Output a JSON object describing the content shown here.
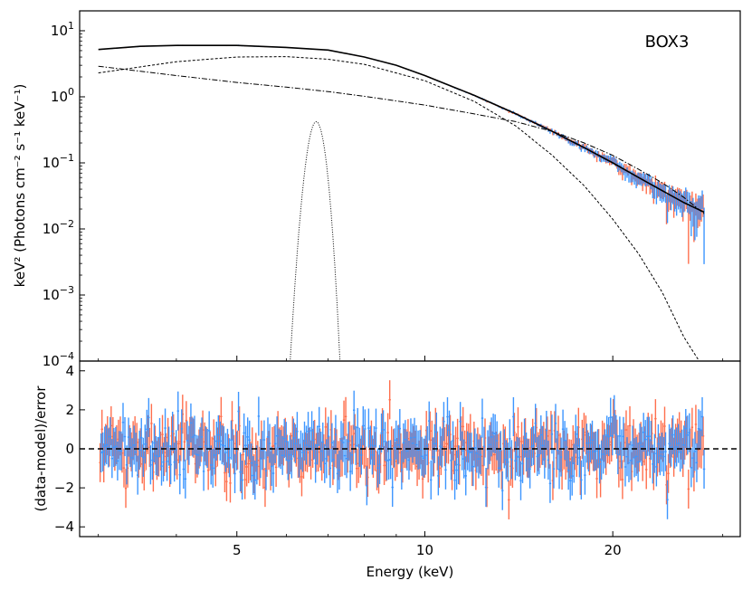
{
  "chart_data": [
    {
      "type": "line",
      "panel": "top",
      "annotation": "BOX3",
      "ylabel": "keV² (Photons cm⁻² s⁻¹ keV⁻¹)",
      "xscale": "log",
      "yscale": "log",
      "xlim": [
        2.8,
        32
      ],
      "ylim": [
        0.0001,
        20
      ],
      "x_ticks": [
        5,
        10,
        20
      ],
      "y_ticks": [
        {
          "value": 10,
          "base": "10",
          "exp": "1"
        },
        {
          "value": 1,
          "base": "10",
          "exp": "0"
        },
        {
          "value": 0.1,
          "base": "10",
          "exp": "−1"
        },
        {
          "value": 0.01,
          "base": "10",
          "exp": "−2"
        },
        {
          "value": 0.001,
          "base": "10",
          "exp": "−3"
        },
        {
          "value": 0.0001,
          "base": "10",
          "exp": "−4"
        }
      ],
      "series": [
        {
          "name": "total model",
          "style": "solid",
          "points": [
            [
              3,
              5.2
            ],
            [
              3.5,
              5.8
            ],
            [
              4,
              6.0
            ],
            [
              5,
              6.0
            ],
            [
              6,
              5.6
            ],
            [
              7,
              5.1
            ],
            [
              8,
              4.0
            ],
            [
              9,
              3.0
            ],
            [
              10,
              2.1
            ],
            [
              12,
              1.05
            ],
            [
              14,
              0.55
            ],
            [
              16,
              0.3
            ],
            [
              18,
              0.17
            ],
            [
              20,
              0.1
            ],
            [
              22,
              0.06
            ],
            [
              24,
              0.038
            ],
            [
              26,
              0.025
            ],
            [
              28,
              0.018
            ]
          ]
        },
        {
          "name": "thermal component",
          "style": "dashed",
          "points": [
            [
              3,
              2.3
            ],
            [
              4,
              3.4
            ],
            [
              5,
              4.0
            ],
            [
              6,
              4.05
            ],
            [
              7,
              3.7
            ],
            [
              8,
              3.1
            ],
            [
              10,
              1.75
            ],
            [
              12,
              0.85
            ],
            [
              14,
              0.36
            ],
            [
              16,
              0.13
            ],
            [
              18,
              0.045
            ],
            [
              20,
              0.014
            ],
            [
              22,
              0.0042
            ],
            [
              24,
              0.0011
            ],
            [
              26,
              0.00023
            ],
            [
              27.5,
              0.0001
            ]
          ]
        },
        {
          "name": "power-law component",
          "style": "dashdot",
          "points": [
            [
              3,
              2.9
            ],
            [
              4,
              2.1
            ],
            [
              5,
              1.65
            ],
            [
              6,
              1.4
            ],
            [
              7,
              1.2
            ],
            [
              8,
              1.02
            ],
            [
              10,
              0.75
            ],
            [
              12,
              0.55
            ],
            [
              14,
              0.42
            ],
            [
              16,
              0.3
            ],
            [
              18,
              0.2
            ],
            [
              20,
              0.13
            ],
            [
              22,
              0.08
            ],
            [
              24,
              0.05
            ],
            [
              26,
              0.03
            ],
            [
              28,
              0.017
            ]
          ]
        },
        {
          "name": "Fe line",
          "style": "dotted",
          "center": 6.7,
          "sigma": 0.15,
          "peak": 0.42
        }
      ],
      "data_sets": [
        {
          "name": "spectrum 1",
          "color": "#ff6f4d"
        },
        {
          "name": "spectrum 2",
          "color": "#3d96ff"
        }
      ]
    },
    {
      "type": "scatter",
      "panel": "bottom",
      "xlabel": "Energy (keV)",
      "ylabel": "(data-model)/error",
      "xscale": "log",
      "xlim": [
        2.8,
        32
      ],
      "ylim": [
        -4.5,
        4.5
      ],
      "x_ticks": [
        5,
        10,
        20
      ],
      "y_ticks": [
        -4,
        -2,
        0,
        2,
        4
      ],
      "y_tick_labels": [
        "−4",
        "−2",
        "0",
        "2",
        "4"
      ],
      "reference_line": 0,
      "x_tick_labels": [
        "5",
        "10",
        "20"
      ]
    }
  ],
  "labels": {
    "annotation": "BOX3",
    "top_ylabel": "keV² (Photons cm⁻² s⁻¹ keV⁻¹)",
    "bottom_ylabel": "(data-model)/error",
    "xlabel": "Energy (keV)"
  },
  "colors": {
    "spectrum1": "#ff6f4d",
    "spectrum2": "#3d96ff",
    "model": "#000000"
  }
}
